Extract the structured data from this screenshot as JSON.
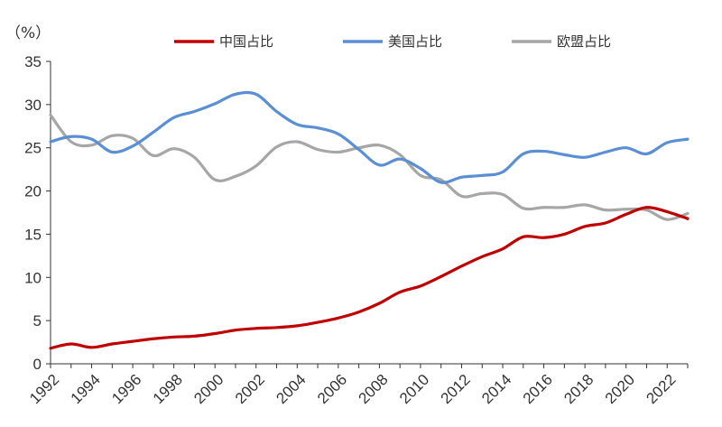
{
  "chart_data": {
    "type": "line",
    "y_unit_label": "（%）",
    "ylim": [
      0,
      35
    ],
    "yticks": [
      0,
      5,
      10,
      15,
      20,
      25,
      30,
      35
    ],
    "xlim": [
      1992,
      2023
    ],
    "xticks": [
      1992,
      1994,
      1996,
      1998,
      2000,
      2002,
      2004,
      2006,
      2008,
      2010,
      2012,
      2014,
      2016,
      2018,
      2020,
      2022
    ],
    "grid": false,
    "legend_position": "top",
    "x": [
      1992,
      1993,
      1994,
      1995,
      1996,
      1997,
      1998,
      1999,
      2000,
      2001,
      2002,
      2003,
      2004,
      2005,
      2006,
      2007,
      2008,
      2009,
      2010,
      2011,
      2012,
      2013,
      2014,
      2015,
      2016,
      2017,
      2018,
      2019,
      2020,
      2021,
      2022,
      2023
    ],
    "series": [
      {
        "name": "中国占比",
        "color": "#c00000",
        "values": [
          1.8,
          2.3,
          1.9,
          2.3,
          2.6,
          2.9,
          3.1,
          3.2,
          3.5,
          3.9,
          4.1,
          4.2,
          4.4,
          4.8,
          5.3,
          6.0,
          7.0,
          8.3,
          9.0,
          10.1,
          11.3,
          12.4,
          13.3,
          14.7,
          14.6,
          15.0,
          15.9,
          16.3,
          17.3,
          18.1,
          17.6,
          16.8
        ]
      },
      {
        "name": "美国占比",
        "color": "#5b8fd4",
        "values": [
          25.7,
          26.3,
          26.0,
          24.5,
          25.2,
          26.8,
          28.5,
          29.2,
          30.1,
          31.2,
          31.2,
          29.2,
          27.7,
          27.3,
          26.6,
          24.8,
          23.0,
          23.7,
          22.6,
          21.0,
          21.6,
          21.8,
          22.2,
          24.3,
          24.6,
          24.2,
          23.9,
          24.5,
          25.0,
          24.3,
          25.6,
          26.0
        ]
      },
      {
        "name": "欧盟占比",
        "color": "#a6a6a6",
        "values": [
          28.8,
          25.7,
          25.3,
          26.4,
          26.1,
          24.1,
          24.9,
          23.9,
          21.3,
          21.7,
          22.9,
          25.1,
          25.7,
          24.8,
          24.5,
          25.0,
          25.3,
          24.2,
          21.8,
          21.3,
          19.4,
          19.7,
          19.6,
          18.0,
          18.1,
          18.1,
          18.4,
          17.8,
          17.9,
          17.8,
          16.7,
          17.4
        ]
      }
    ]
  }
}
